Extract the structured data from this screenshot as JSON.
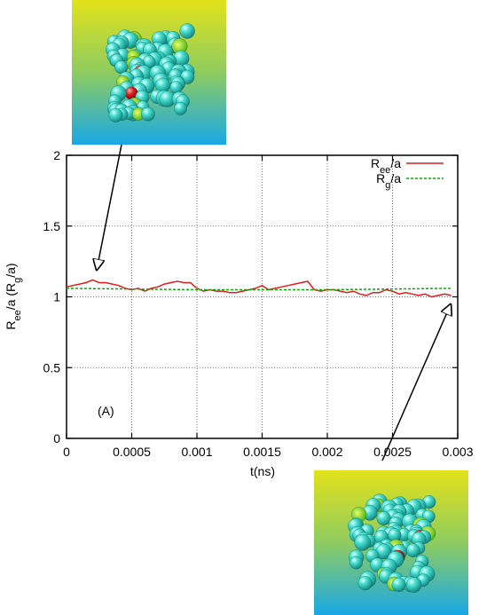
{
  "chart_data": {
    "type": "line",
    "xlabel": "t(ns)",
    "ylabel_parts": [
      "R",
      "ee",
      "/a (R",
      "g",
      "/a)"
    ],
    "panel_label": "(A)",
    "xlim": [
      0,
      0.003
    ],
    "ylim": [
      0,
      2
    ],
    "xticks": [
      "0",
      "0.0005",
      "0.001",
      "0.0015",
      "0.002",
      "0.0025",
      "0.003"
    ],
    "yticks": [
      "0",
      "0.5",
      "1",
      "1.5",
      "2"
    ],
    "grid": true,
    "legend_position": "top-right",
    "series": [
      {
        "name_parts": [
          "R",
          "ee",
          "/a"
        ],
        "color": "#e41a1c",
        "style": "solid",
        "x": [
          0,
          0.0001,
          0.00015,
          0.0002,
          0.00025,
          0.0003,
          0.00035,
          0.0004,
          0.00045,
          0.0005,
          0.00055,
          0.0006,
          0.00065,
          0.0007,
          0.00075,
          0.0008,
          0.00085,
          0.0009,
          0.00095,
          0.001,
          0.00105,
          0.0011,
          0.00115,
          0.0012,
          0.00125,
          0.0013,
          0.00135,
          0.0014,
          0.00145,
          0.0015,
          0.00155,
          0.0016,
          0.00165,
          0.0017,
          0.00175,
          0.0018,
          0.00185,
          0.0019,
          0.00195,
          0.002,
          0.00205,
          0.0021,
          0.00215,
          0.0022,
          0.00225,
          0.0023,
          0.00235,
          0.0024,
          0.00245,
          0.0025,
          0.00255,
          0.0026,
          0.00265,
          0.0027,
          0.00275,
          0.0028,
          0.00285,
          0.0029,
          0.00295
        ],
        "y": [
          1.07,
          1.09,
          1.1,
          1.12,
          1.1,
          1.1,
          1.09,
          1.08,
          1.06,
          1.05,
          1.06,
          1.04,
          1.06,
          1.07,
          1.09,
          1.1,
          1.11,
          1.1,
          1.1,
          1.06,
          1.04,
          1.05,
          1.04,
          1.04,
          1.03,
          1.03,
          1.04,
          1.05,
          1.06,
          1.08,
          1.05,
          1.06,
          1.07,
          1.08,
          1.09,
          1.1,
          1.11,
          1.05,
          1.04,
          1.05,
          1.05,
          1.04,
          1.03,
          1.04,
          1.02,
          1.01,
          1.03,
          1.03,
          1.05,
          1.04,
          1.02,
          1.03,
          1.02,
          1.01,
          1.02,
          1.0,
          1.01,
          1.02,
          1.01
        ]
      },
      {
        "name_parts": [
          "R",
          "g",
          "/a"
        ],
        "color": "#00b000",
        "style": "dashed",
        "x": [
          0,
          0.0005,
          0.001,
          0.0015,
          0.002,
          0.0025,
          0.00295
        ],
        "y": [
          1.06,
          1.055,
          1.05,
          1.05,
          1.05,
          1.055,
          1.06
        ]
      }
    ]
  }
}
